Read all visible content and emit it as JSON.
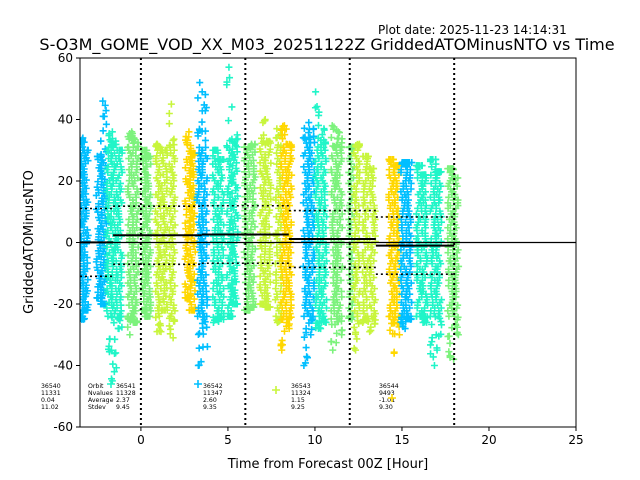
{
  "plot_date": "Plot date: 2025-11-23 14:14:31",
  "chart_data": {
    "type": "scatter",
    "title": "S-O3M_GOME_VOD_XX_M03_20251122Z GriddedATOMinusNTO vs Time",
    "xlabel": "Time from Forecast 00Z [Hour]",
    "ylabel": "GriddedATOMinusNTO",
    "xlim": [
      -3.5,
      25
    ],
    "ylim": [
      -60,
      60
    ],
    "xticks": [
      "0",
      "5",
      "10",
      "15",
      "20",
      "25"
    ],
    "xtick_values": [
      0,
      5,
      10,
      15,
      20,
      25
    ],
    "yticks": [
      "60",
      "40",
      "20",
      "0",
      "-20",
      "-40",
      "-60"
    ],
    "ytick_values": [
      60,
      40,
      20,
      0,
      -20,
      -40,
      -60
    ],
    "forecast_lines": [
      0,
      6,
      12,
      18
    ],
    "zero_line": 0,
    "marker": "+",
    "colors": {
      "c1": "#00bfff",
      "c2": "#20f5c8",
      "c3": "#7cf27c",
      "c4": "#c8f53c",
      "c5": "#ffd700"
    },
    "orbits": [
      {
        "orbit": "36540",
        "nvalues": "11331",
        "average": "0.04",
        "stdev": "11.02",
        "x_start": -3.5,
        "x_end": -1.6,
        "mean": 0.04,
        "sd": 11.02
      },
      {
        "orbit": "36541",
        "nvalues": "11328",
        "average": "2.37",
        "stdev": "9.45",
        "x_start": -1.6,
        "x_end": 3.5,
        "mean": 2.37,
        "sd": 9.45
      },
      {
        "orbit": "36542",
        "nvalues": "11347",
        "average": "2.60",
        "stdev": "9.35",
        "x_start": 3.5,
        "x_end": 8.5,
        "mean": 2.6,
        "sd": 9.35
      },
      {
        "orbit": "36543",
        "nvalues": "11324",
        "average": "1.15",
        "stdev": "9.25",
        "x_start": 8.5,
        "x_end": 13.5,
        "mean": 1.15,
        "sd": 9.25
      },
      {
        "orbit": "36544",
        "nvalues": "9493",
        "average": "-1.01",
        "stdev": "9.30",
        "x_start": 13.5,
        "x_end": 18.0,
        "mean": -1.01,
        "sd": 9.3
      }
    ],
    "stats_labels": [
      "Orbit",
      "Nvalues",
      "Average",
      "Stdev"
    ],
    "scan_groups": [
      {
        "x": -3.4,
        "color": "c1",
        "min": -25,
        "max": 34
      },
      {
        "x": -3.2,
        "color": "c1",
        "min": -22,
        "max": 30
      },
      {
        "x": -2.4,
        "color": "c1",
        "min": -18,
        "max": 28
      },
      {
        "x": -2.15,
        "color": "c1",
        "min": -20,
        "max": 46
      },
      {
        "x": -1.8,
        "color": "c2",
        "min": -45,
        "max": 36
      },
      {
        "x": -1.55,
        "color": "c2",
        "min": -42,
        "max": 33
      },
      {
        "x": -1.25,
        "color": "c2",
        "min": -28,
        "max": 30
      },
      {
        "x": -0.6,
        "color": "c3",
        "min": -30,
        "max": 36
      },
      {
        "x": -0.3,
        "color": "c3",
        "min": -26,
        "max": 34
      },
      {
        "x": 0.2,
        "color": "c3",
        "min": -22,
        "max": 30
      },
      {
        "x": 0.4,
        "color": "c3",
        "min": -24,
        "max": 28
      },
      {
        "x": 1.0,
        "color": "c4",
        "min": -29,
        "max": 32
      },
      {
        "x": 1.35,
        "color": "c4",
        "min": -22,
        "max": 30
      },
      {
        "x": 1.8,
        "color": "c4",
        "min": -31,
        "max": 45
      },
      {
        "x": 2.7,
        "color": "c5",
        "min": -18,
        "max": 36
      },
      {
        "x": 2.95,
        "color": "c5",
        "min": -22,
        "max": 29
      },
      {
        "x": 3.4,
        "color": "c1",
        "min": -40,
        "max": 52
      },
      {
        "x": 3.65,
        "color": "c1",
        "min": -34,
        "max": 49
      },
      {
        "x": 4.3,
        "color": "c2",
        "min": -26,
        "max": 30
      },
      {
        "x": 4.6,
        "color": "c2",
        "min": -25,
        "max": 27
      },
      {
        "x": 5.1,
        "color": "c2",
        "min": -24,
        "max": 57
      },
      {
        "x": 5.4,
        "color": "c2",
        "min": -20,
        "max": 35
      },
      {
        "x": 6.1,
        "color": "c3",
        "min": -22,
        "max": 31
      },
      {
        "x": 6.4,
        "color": "c3",
        "min": -21,
        "max": 32
      },
      {
        "x": 7.0,
        "color": "c4",
        "min": -20,
        "max": 40
      },
      {
        "x": 7.3,
        "color": "c4",
        "min": -21,
        "max": 33
      },
      {
        "x": 7.9,
        "color": "c4",
        "min": -26,
        "max": 37
      },
      {
        "x": 8.2,
        "color": "c5",
        "min": -35,
        "max": 38
      },
      {
        "x": 8.5,
        "color": "c5",
        "min": -28,
        "max": 32
      },
      {
        "x": 9.5,
        "color": "c1",
        "min": -40,
        "max": 39
      },
      {
        "x": 9.8,
        "color": "c1",
        "min": -30,
        "max": 37
      },
      {
        "x": 10.2,
        "color": "c2",
        "min": -28,
        "max": 49
      },
      {
        "x": 10.5,
        "color": "c2",
        "min": -26,
        "max": 37
      },
      {
        "x": 11.1,
        "color": "c3",
        "min": -35,
        "max": 38
      },
      {
        "x": 11.4,
        "color": "c3",
        "min": -30,
        "max": 36
      },
      {
        "x": 12.1,
        "color": "c3",
        "min": -25,
        "max": 31
      },
      {
        "x": 12.4,
        "color": "c4",
        "min": -35,
        "max": 32
      },
      {
        "x": 12.9,
        "color": "c4",
        "min": -26,
        "max": 28
      },
      {
        "x": 13.3,
        "color": "c4",
        "min": -29,
        "max": 24
      },
      {
        "x": 14.4,
        "color": "c5",
        "min": -36,
        "max": 27
      },
      {
        "x": 14.7,
        "color": "c5",
        "min": -30,
        "max": 25
      },
      {
        "x": 15.1,
        "color": "c1",
        "min": -28,
        "max": 26
      },
      {
        "x": 15.4,
        "color": "c1",
        "min": -25,
        "max": 26
      },
      {
        "x": 16.0,
        "color": "c2",
        "min": -24,
        "max": 25
      },
      {
        "x": 16.3,
        "color": "c2",
        "min": -26,
        "max": 22
      },
      {
        "x": 16.8,
        "color": "c2",
        "min": -40,
        "max": 27
      },
      {
        "x": 17.1,
        "color": "c2",
        "min": -35,
        "max": 23
      },
      {
        "x": 17.8,
        "color": "c3",
        "min": -38,
        "max": 24
      },
      {
        "x": 18.1,
        "color": "c3",
        "min": -30,
        "max": 21
      }
    ]
  }
}
